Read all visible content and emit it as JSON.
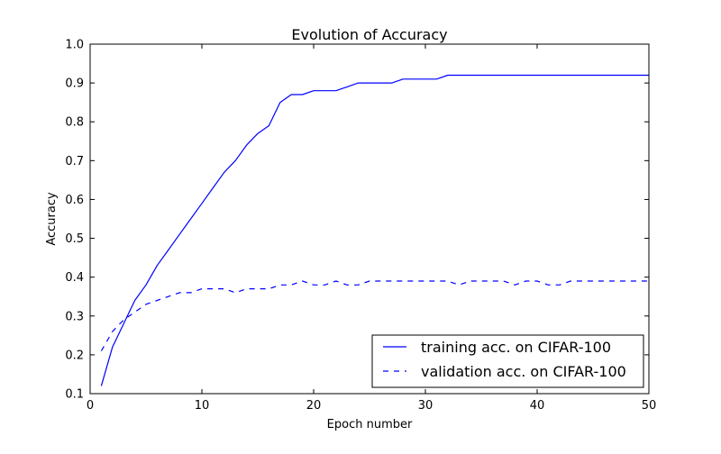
{
  "chart_data": {
    "type": "line",
    "title": "Evolution of Accuracy",
    "xlabel": "Epoch number",
    "ylabel": "Accuracy",
    "xlim": [
      0,
      50
    ],
    "ylim": [
      0.1,
      1.0
    ],
    "xticks": [
      0,
      10,
      20,
      30,
      40,
      50
    ],
    "xtick_labels": [
      "0",
      "10",
      "20",
      "30",
      "40",
      "50"
    ],
    "yticks": [
      0.1,
      0.2,
      0.3,
      0.4,
      0.5,
      0.6,
      0.7,
      0.8,
      0.9,
      1.0
    ],
    "ytick_labels": [
      "0.1",
      "0.2",
      "0.3",
      "0.4",
      "0.5",
      "0.6",
      "0.7",
      "0.8",
      "0.9",
      "1.0"
    ],
    "grid": false,
    "legend_position": "lower-right",
    "x": [
      1,
      2,
      3,
      4,
      5,
      6,
      7,
      8,
      9,
      10,
      11,
      12,
      13,
      14,
      15,
      16,
      17,
      18,
      19,
      20,
      21,
      22,
      23,
      24,
      25,
      26,
      27,
      28,
      29,
      30,
      31,
      32,
      33,
      34,
      35,
      36,
      37,
      38,
      39,
      40,
      41,
      42,
      43,
      44,
      45,
      46,
      47,
      48,
      49,
      50
    ],
    "series": [
      {
        "name": "training acc. on CIFAR-100",
        "color": "#0000ff",
        "style": "solid",
        "values": [
          0.12,
          0.22,
          0.28,
          0.34,
          0.38,
          0.43,
          0.47,
          0.51,
          0.55,
          0.59,
          0.63,
          0.67,
          0.7,
          0.74,
          0.77,
          0.79,
          0.85,
          0.87,
          0.87,
          0.88,
          0.88,
          0.88,
          0.89,
          0.9,
          0.9,
          0.9,
          0.9,
          0.91,
          0.91,
          0.91,
          0.91,
          0.92,
          0.92,
          0.92,
          0.92,
          0.92,
          0.92,
          0.92,
          0.92,
          0.92,
          0.92,
          0.92,
          0.92,
          0.92,
          0.92,
          0.92,
          0.92,
          0.92,
          0.92,
          0.92
        ]
      },
      {
        "name": "validation acc. on CIFAR-100",
        "color": "#0000ff",
        "style": "dashed",
        "values": [
          0.21,
          0.26,
          0.29,
          0.31,
          0.33,
          0.34,
          0.35,
          0.36,
          0.36,
          0.37,
          0.37,
          0.37,
          0.36,
          0.37,
          0.37,
          0.37,
          0.38,
          0.38,
          0.39,
          0.38,
          0.38,
          0.39,
          0.38,
          0.38,
          0.39,
          0.39,
          0.39,
          0.39,
          0.39,
          0.39,
          0.39,
          0.39,
          0.38,
          0.39,
          0.39,
          0.39,
          0.39,
          0.38,
          0.39,
          0.39,
          0.38,
          0.38,
          0.39,
          0.39,
          0.39,
          0.39,
          0.39,
          0.39,
          0.39,
          0.39
        ]
      }
    ]
  }
}
